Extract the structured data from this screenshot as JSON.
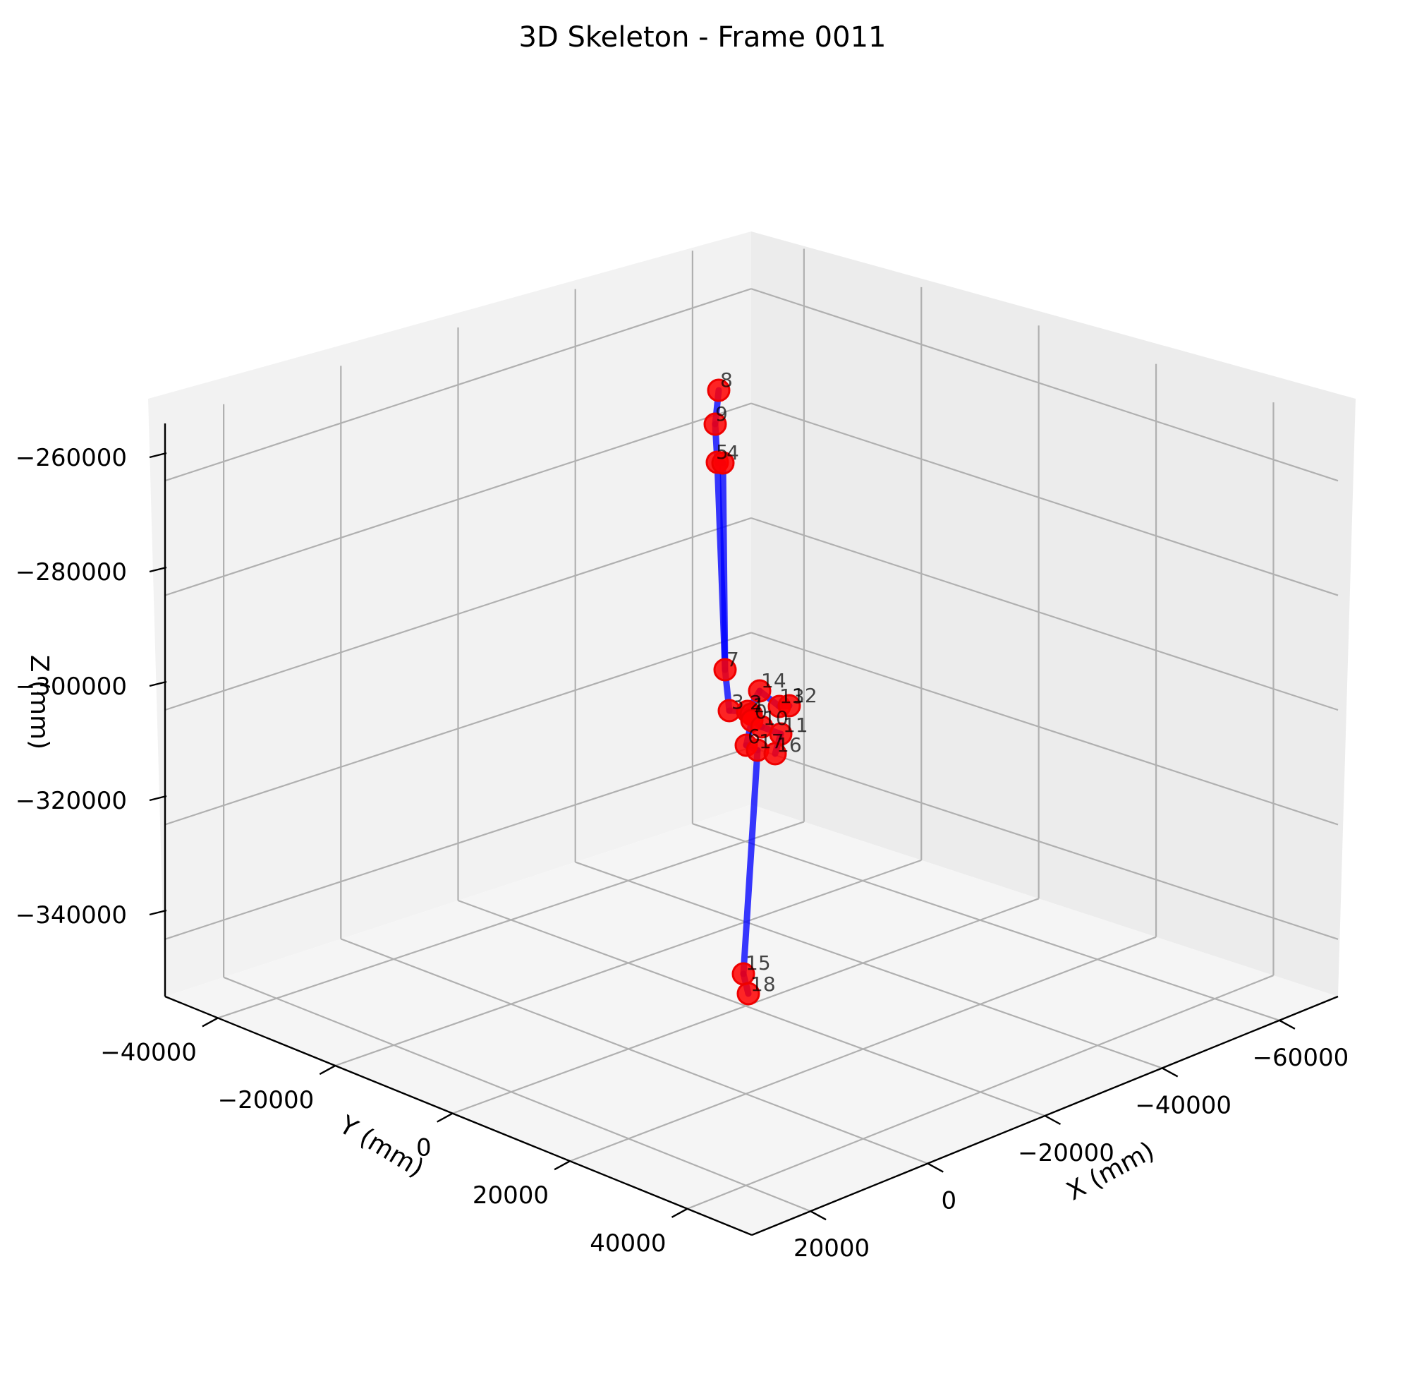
{
  "chart_data": {
    "type": "scatter3d",
    "title": "3D Skeleton - Frame 0011",
    "xlabel": "X (mm)",
    "ylabel": "Y (mm)",
    "zlabel": "Z (mm)",
    "x_ticks": [
      "20000",
      "0",
      "−20000",
      "−40000",
      "−60000"
    ],
    "y_ticks": [
      "−40000",
      "−20000",
      "0",
      "20000",
      "40000"
    ],
    "z_ticks": [
      "−260000",
      "−280000",
      "−300000",
      "−320000",
      "−340000"
    ],
    "joint_color": "#ff0000",
    "bone_color": "#0000ff",
    "grid": true,
    "joints": [
      {
        "id": "8",
        "z": -255000
      },
      {
        "id": "9",
        "z": -258000
      },
      {
        "id": "5",
        "z": -261000
      },
      {
        "id": "4",
        "z": -261000
      },
      {
        "id": "7",
        "z": -298000
      },
      {
        "id": "14",
        "z": -302000
      },
      {
        "id": "13",
        "z": -304000
      },
      {
        "id": "12",
        "z": -304000
      },
      {
        "id": "3",
        "z": -305000
      },
      {
        "id": "2",
        "z": -305000
      },
      {
        "id": "1",
        "z": -306000
      },
      {
        "id": "0",
        "z": -307000
      },
      {
        "id": "10",
        "z": -308000
      },
      {
        "id": "11",
        "z": -309000
      },
      {
        "id": "6",
        "z": -311000
      },
      {
        "id": "17",
        "z": -312000
      },
      {
        "id": "16",
        "z": -312000
      },
      {
        "id": "15",
        "z": -347000
      },
      {
        "id": "18",
        "z": -349000
      }
    ],
    "bones": [
      [
        "8",
        "9"
      ],
      [
        "9",
        "5"
      ],
      [
        "5",
        "4"
      ],
      [
        "4",
        "7"
      ],
      [
        "5",
        "7"
      ],
      [
        "7",
        "3"
      ],
      [
        "3",
        "2"
      ],
      [
        "2",
        "1"
      ],
      [
        "1",
        "0"
      ],
      [
        "0",
        "6"
      ],
      [
        "6",
        "17"
      ],
      [
        "17",
        "15"
      ],
      [
        "15",
        "18"
      ],
      [
        "0",
        "10"
      ],
      [
        "10",
        "11"
      ],
      [
        "11",
        "16"
      ],
      [
        "2",
        "14"
      ],
      [
        "14",
        "13"
      ],
      [
        "13",
        "12"
      ]
    ]
  }
}
